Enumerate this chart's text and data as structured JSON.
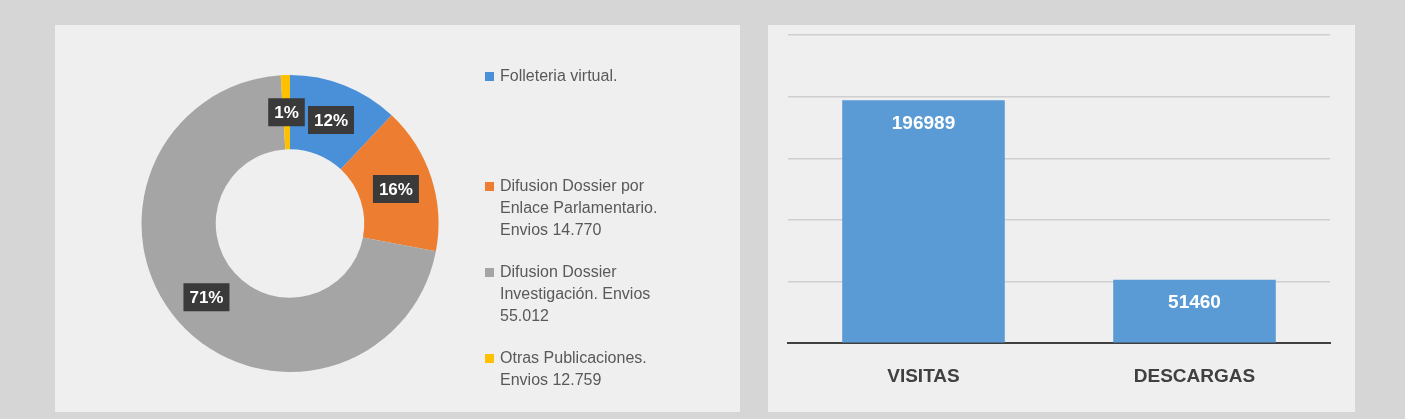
{
  "chart_data": [
    {
      "type": "donut",
      "categories": [
        "Folleteria virtual.",
        "Difusion Dossier por Enlace Parlamentario. Envios  14.770",
        "Difusion Dossier Investigación. Envios 55.012",
        "Otras Publicaciones. Envios 12.759"
      ],
      "values": [
        12,
        16,
        71,
        1
      ],
      "value_labels": [
        "12%",
        "16%",
        "71%",
        "1%"
      ],
      "colors": [
        "#4a90d9",
        "#ed7d31",
        "#a5a5a5",
        "#ffc000"
      ],
      "legend": "right"
    },
    {
      "type": "bar",
      "categories": [
        "VISITAS",
        "DESCARGAS"
      ],
      "values": [
        196989,
        51460
      ],
      "color": "#5b9bd5",
      "data_labels": true,
      "ylim": [
        0,
        250000
      ],
      "yticks": [
        {
          "value": 0,
          "label": null
        },
        {
          "value": 50000,
          "label": null
        },
        {
          "value": 100000,
          "label": null
        },
        {
          "value": 150000,
          "label": null
        },
        {
          "value": 200000,
          "label": null
        },
        {
          "value": 250000,
          "label": null
        }
      ],
      "grid": "y",
      "tick_labels": "x"
    }
  ]
}
